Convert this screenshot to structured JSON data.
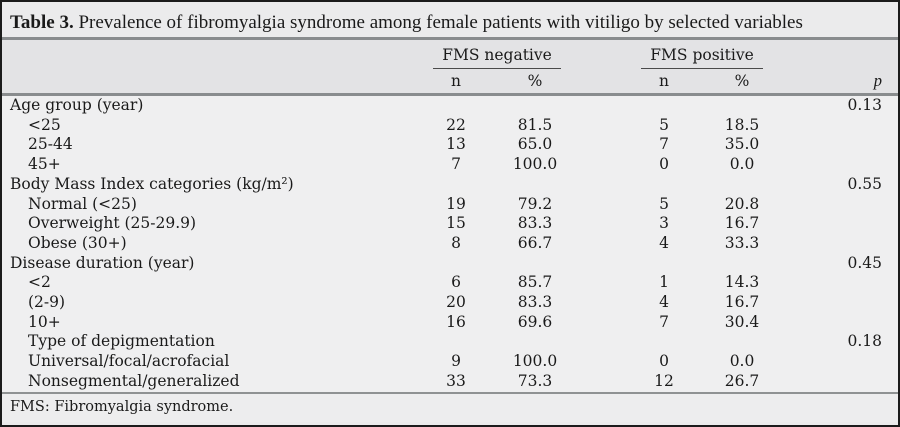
{
  "table": {
    "title_label": "Table 3.",
    "title_text": "Prevalence of fibromyalgia syndrome among female patients with vitiligo by selected variables",
    "header": {
      "group_negative": "FMS negative",
      "group_positive": "FMS positive",
      "n_label": "n",
      "pct_label": "%",
      "p_label": "p"
    },
    "rows": [
      {
        "label": "Age group (year)",
        "indent": false,
        "n_neg": "",
        "pct_neg": "",
        "n_pos": "",
        "pct_pos": "",
        "p": "0.13"
      },
      {
        "label": "<25",
        "indent": true,
        "n_neg": "22",
        "pct_neg": "81.5",
        "n_pos": "5",
        "pct_pos": "18.5",
        "p": ""
      },
      {
        "label": "25-44",
        "indent": true,
        "n_neg": "13",
        "pct_neg": "65.0",
        "n_pos": "7",
        "pct_pos": "35.0",
        "p": ""
      },
      {
        "label": "45+",
        "indent": true,
        "n_neg": "7",
        "pct_neg": "100.0",
        "n_pos": "0",
        "pct_pos": "0.0",
        "p": ""
      },
      {
        "label": "Body Mass Index categories (kg/m²)",
        "indent": false,
        "n_neg": "",
        "pct_neg": "",
        "n_pos": "",
        "pct_pos": "",
        "p": "0.55"
      },
      {
        "label": "Normal (<25)",
        "indent": true,
        "n_neg": "19",
        "pct_neg": "79.2",
        "n_pos": "5",
        "pct_pos": "20.8",
        "p": ""
      },
      {
        "label": "Overweight (25-29.9)",
        "indent": true,
        "n_neg": "15",
        "pct_neg": "83.3",
        "n_pos": "3",
        "pct_pos": "16.7",
        "p": ""
      },
      {
        "label": "Obese (30+)",
        "indent": true,
        "n_neg": "8",
        "pct_neg": "66.7",
        "n_pos": "4",
        "pct_pos": "33.3",
        "p": ""
      },
      {
        "label": "Disease duration (year)",
        "indent": false,
        "n_neg": "",
        "pct_neg": "",
        "n_pos": "",
        "pct_pos": "",
        "p": "0.45"
      },
      {
        "label": "<2",
        "indent": true,
        "n_neg": "6",
        "pct_neg": "85.7",
        "n_pos": "1",
        "pct_pos": "14.3",
        "p": ""
      },
      {
        "label": "(2-9)",
        "indent": true,
        "n_neg": "20",
        "pct_neg": "83.3",
        "n_pos": "4",
        "pct_pos": "16.7",
        "p": ""
      },
      {
        "label": "10+",
        "indent": true,
        "n_neg": "16",
        "pct_neg": "69.6",
        "n_pos": "7",
        "pct_pos": "30.4",
        "p": ""
      },
      {
        "label": "Type of depigmentation",
        "indent": true,
        "n_neg": "",
        "pct_neg": "",
        "n_pos": "",
        "pct_pos": "",
        "p": "0.18"
      },
      {
        "label": "Universal/focal/acrofacial",
        "indent": true,
        "n_neg": "9",
        "pct_neg": "100.0",
        "n_pos": "0",
        "pct_pos": "0.0",
        "p": ""
      },
      {
        "label": "Nonsegmental/generalized",
        "indent": true,
        "n_neg": "33",
        "pct_neg": "73.3",
        "n_pos": "12",
        "pct_pos": "26.7",
        "p": ""
      }
    ],
    "footnote": "FMS: Fibromyalgia syndrome.",
    "colors": {
      "outer_border": "#1b1b1b",
      "title_bg": "#ebebec",
      "header_bg": "#e3e3e5",
      "body_bg": "#efeff0",
      "rule": "#898c8e",
      "text": "#1a1a1a"
    }
  }
}
